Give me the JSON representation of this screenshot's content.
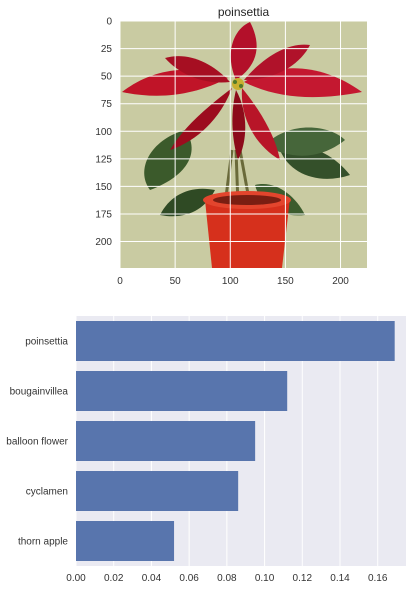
{
  "chart_data": [
    {
      "type": "image",
      "title": "poinsettia",
      "xlim": [
        0,
        224
      ],
      "ylim": [
        0,
        224
      ],
      "y_inverted": true,
      "grid": true,
      "xticks": [
        0,
        50,
        100,
        150,
        200
      ],
      "yticks": [
        0,
        25,
        50,
        75,
        100,
        125,
        150,
        175,
        200
      ],
      "image_description_colors": {
        "background": "#c9cba2",
        "leaf_red": "#c01428",
        "leaf_dark_red": "#8c0a1a",
        "leaf_green": "#3b5a2b",
        "pot": "#d6301c"
      }
    },
    {
      "type": "bar",
      "orientation": "horizontal",
      "categories": [
        "poinsettia",
        "bougainvillea",
        "balloon flower",
        "cyclamen",
        "thorn apple"
      ],
      "values": [
        0.169,
        0.112,
        0.095,
        0.086,
        0.052
      ],
      "xlim": [
        0,
        0.175
      ],
      "xticks": [
        "0.00",
        "0.02",
        "0.04",
        "0.06",
        "0.08",
        "0.10",
        "0.12",
        "0.14",
        "0.16"
      ],
      "grid": true,
      "bar_color": "#5875ad",
      "background_color": "#eaeaf2"
    }
  ]
}
